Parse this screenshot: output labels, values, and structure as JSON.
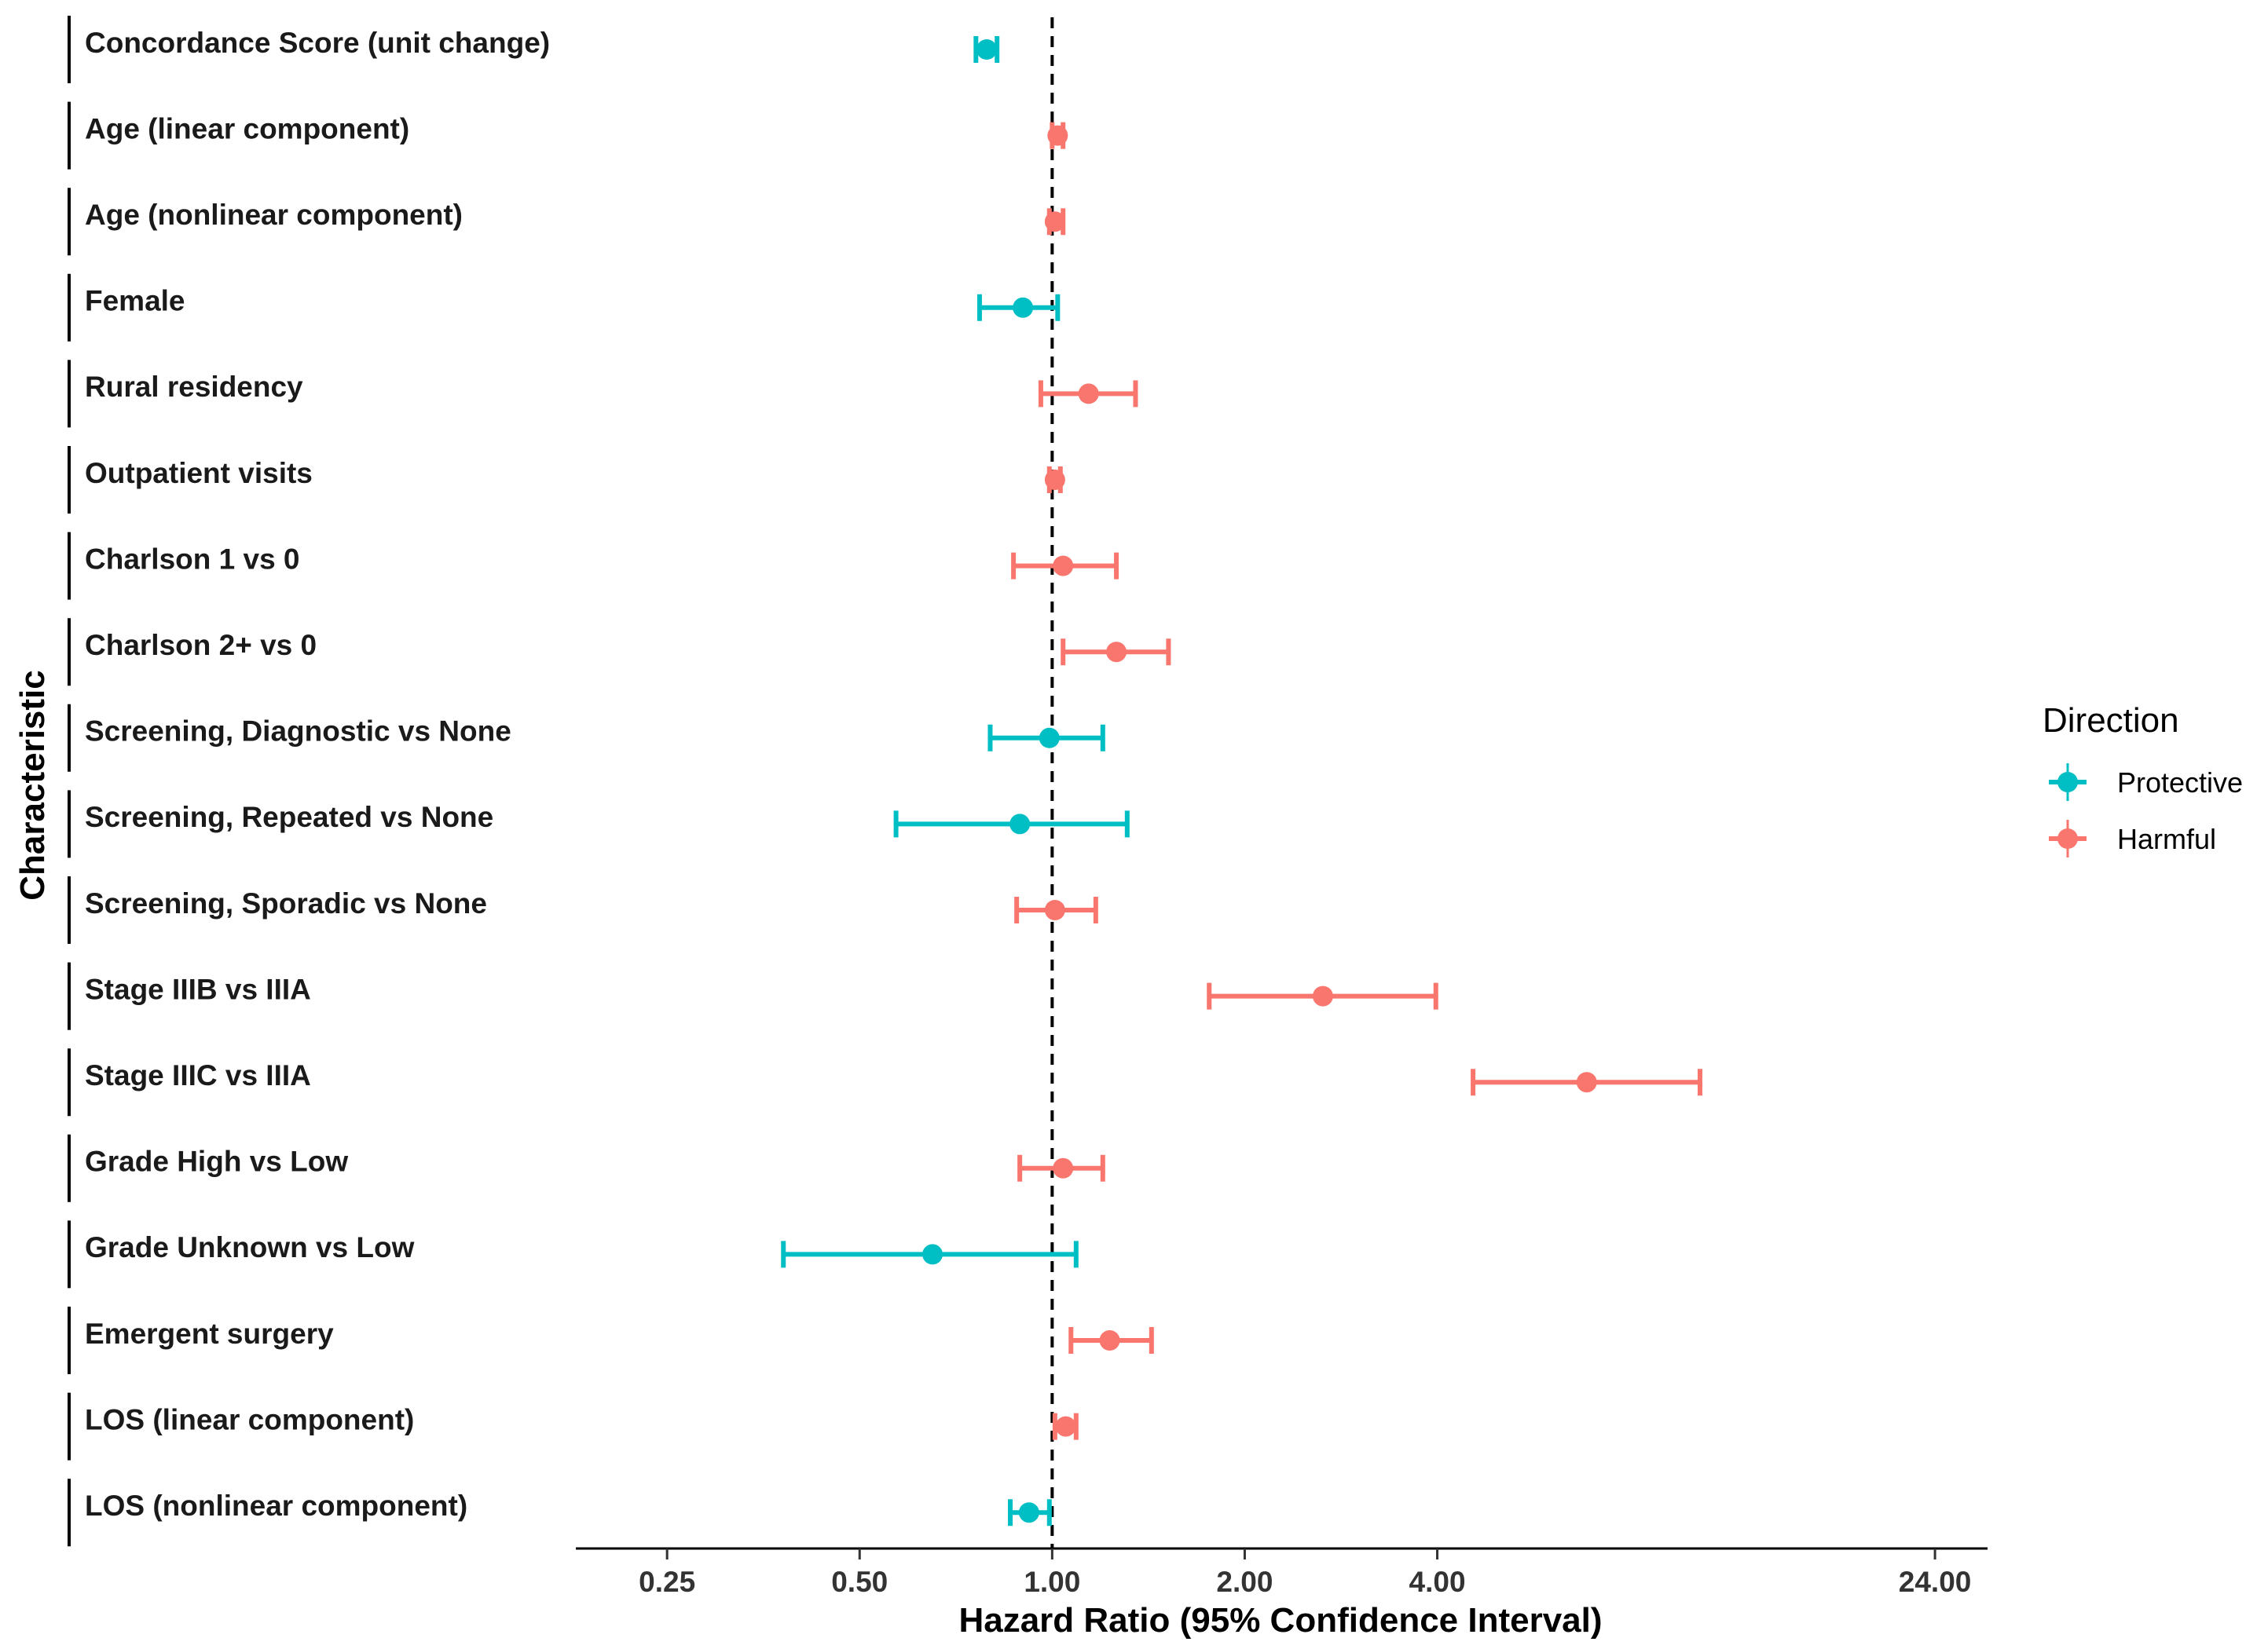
{
  "chart_data": {
    "type": "forest",
    "xlabel": "Hazard Ratio (95% Confidence Interval)",
    "ylabel": "Characteristic",
    "x_scale": "log2",
    "xlim": [
      0.18,
      29.0
    ],
    "x_ticks": [
      0.25,
      0.5,
      1.0,
      2.0,
      4.0,
      24.0
    ],
    "x_tick_labels": [
      "0.25",
      "0.50",
      "1.00",
      "2.00",
      "4.00",
      "24.00"
    ],
    "reference_line": 1.0,
    "legend": {
      "title": "Direction",
      "position": "right",
      "entries": [
        {
          "key": "protective",
          "label": "Protective",
          "color": "#00BFC4"
        },
        {
          "key": "harmful",
          "label": "Harmful",
          "color": "#F8766D"
        }
      ]
    },
    "rows": [
      {
        "label": "Concordance Score (unit change)",
        "hr": 0.79,
        "lo": 0.76,
        "hi": 0.82,
        "direction": "protective"
      },
      {
        "label": "Age (linear component)",
        "hr": 1.02,
        "lo": 1.0,
        "hi": 1.04,
        "direction": "harmful"
      },
      {
        "label": "Age (nonlinear component)",
        "hr": 1.01,
        "lo": 0.99,
        "hi": 1.04,
        "direction": "harmful"
      },
      {
        "label": "Female",
        "hr": 0.9,
        "lo": 0.77,
        "hi": 1.02,
        "direction": "protective"
      },
      {
        "label": "Rural residency",
        "hr": 1.14,
        "lo": 0.96,
        "hi": 1.35,
        "direction": "harmful"
      },
      {
        "label": "Outpatient visits",
        "hr": 1.01,
        "lo": 0.99,
        "hi": 1.03,
        "direction": "harmful"
      },
      {
        "label": "Charlson 1 vs 0",
        "hr": 1.04,
        "lo": 0.87,
        "hi": 1.26,
        "direction": "harmful"
      },
      {
        "label": "Charlson 2+ vs 0",
        "hr": 1.26,
        "lo": 1.04,
        "hi": 1.52,
        "direction": "harmful"
      },
      {
        "label": "Screening, Diagnostic vs None",
        "hr": 0.99,
        "lo": 0.8,
        "hi": 1.2,
        "direction": "protective"
      },
      {
        "label": "Screening, Repeated vs None",
        "hr": 0.89,
        "lo": 0.57,
        "hi": 1.31,
        "direction": "protective"
      },
      {
        "label": "Screening, Sporadic vs None",
        "hr": 1.01,
        "lo": 0.88,
        "hi": 1.17,
        "direction": "harmful"
      },
      {
        "label": "Stage IIIB vs IIIA",
        "hr": 2.65,
        "lo": 1.76,
        "hi": 3.98,
        "direction": "harmful"
      },
      {
        "label": "Stage IIIC vs IIIA",
        "hr": 6.85,
        "lo": 4.55,
        "hi": 10.3,
        "direction": "harmful"
      },
      {
        "label": "Grade High vs Low",
        "hr": 1.04,
        "lo": 0.89,
        "hi": 1.2,
        "direction": "harmful"
      },
      {
        "label": "Grade Unknown vs Low",
        "hr": 0.65,
        "lo": 0.38,
        "hi": 1.09,
        "direction": "protective"
      },
      {
        "label": "Emergent surgery",
        "hr": 1.23,
        "lo": 1.07,
        "hi": 1.43,
        "direction": "harmful"
      },
      {
        "label": "LOS (linear component)",
        "hr": 1.05,
        "lo": 1.01,
        "hi": 1.09,
        "direction": "harmful"
      },
      {
        "label": "LOS (nonlinear component)",
        "hr": 0.92,
        "lo": 0.86,
        "hi": 0.99,
        "direction": "protective"
      }
    ]
  }
}
